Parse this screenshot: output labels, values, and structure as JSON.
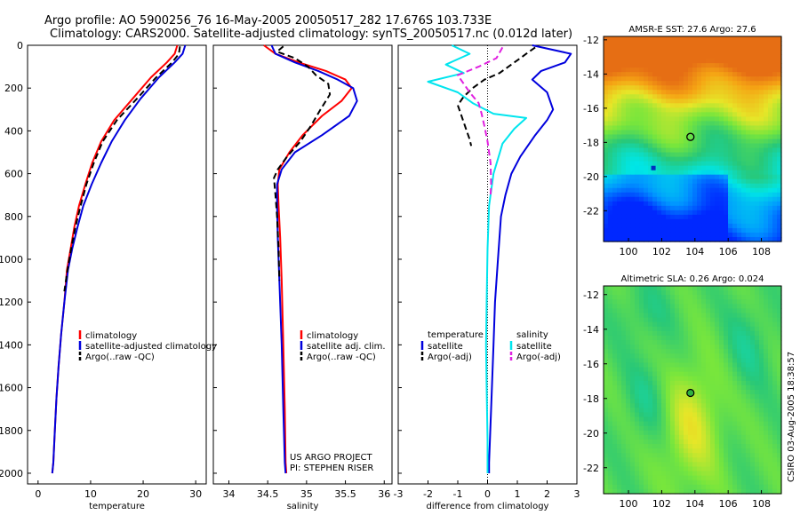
{
  "header": {
    "title_line1": "Argo profile: AO 5900256_76 16-May-2005 20050517_282 17.676S 103.733E",
    "title_line2": "Climatology: CARS2000. Satellite-adjusted climatology: synTS_20050517.nc (0.012d later)"
  },
  "footer": {
    "credit": "CSIRO 03-Aug-2005 18:38:57",
    "project_line1": "US ARGO PROJECT",
    "project_line2": "PI: STEPHEN RISER"
  },
  "colors": {
    "climatology": "#ff0000",
    "satellite": "#0000dd",
    "argo": "#000000",
    "satellite_salinity": "#00e5ee",
    "argo_salinity": "#e020e0"
  },
  "chart_data": [
    {
      "type": "line",
      "xlabel": "temperature",
      "xlim": [
        -2,
        32
      ],
      "ylim": [
        0,
        2050
      ],
      "y_reversed": true,
      "xticks": [
        0,
        10,
        20,
        30
      ],
      "yticks": [
        0,
        200,
        400,
        600,
        800,
        1000,
        1200,
        1400,
        1600,
        1800,
        2000
      ],
      "legend": [
        "climatology",
        "satellite-adjusted climatology",
        "Argo(..raw -QC)"
      ],
      "series": [
        {
          "name": "climatology",
          "color": "#ff0000",
          "dash": false,
          "x": [
            26.5,
            26.0,
            24.5,
            21.5,
            18.0,
            14.5,
            12.0,
            10.3,
            9.0,
            7.8,
            6.9,
            6.2,
            5.5,
            5.0,
            4.4,
            3.9,
            3.5,
            3.2,
            2.9,
            2.7
          ],
          "y": [
            0,
            40,
            80,
            150,
            250,
            350,
            450,
            550,
            650,
            750,
            850,
            950,
            1050,
            1200,
            1350,
            1500,
            1650,
            1800,
            1950,
            2000
          ]
        },
        {
          "name": "satellite-adjusted climatology",
          "color": "#0000dd",
          "dash": false,
          "x": [
            28.0,
            27.5,
            26.0,
            23.0,
            19.5,
            16.5,
            14.0,
            12.0,
            10.2,
            8.6,
            7.5,
            6.5,
            5.7,
            5.0,
            4.4,
            3.9,
            3.5,
            3.2,
            2.9,
            2.7
          ],
          "y": [
            0,
            40,
            80,
            150,
            250,
            350,
            450,
            550,
            650,
            750,
            850,
            950,
            1050,
            1200,
            1350,
            1500,
            1650,
            1800,
            1950,
            2000
          ]
        },
        {
          "name": "Argo(..raw -QC)",
          "color": "#000000",
          "dash": true,
          "x": [
            27.0,
            26.8,
            25.5,
            22.5,
            18.8,
            15.0,
            12.3,
            10.6,
            9.2,
            8.1,
            7.1,
            6.3,
            5.6,
            5.0
          ],
          "y": [
            5,
            40,
            80,
            150,
            250,
            350,
            450,
            550,
            650,
            750,
            850,
            950,
            1050,
            1150
          ]
        }
      ]
    },
    {
      "type": "line",
      "xlabel": "salinity",
      "xlim": [
        33.8,
        36.1
      ],
      "ylim": [
        0,
        2050
      ],
      "y_reversed": true,
      "xticks": [
        34,
        34.5,
        35,
        35.5,
        36
      ],
      "yticks": [
        0,
        200,
        400,
        600,
        800,
        1000,
        1200,
        1400,
        1600,
        1800,
        2000
      ],
      "legend": [
        "climatology",
        "satellite adj. clim.",
        "Argo(..raw -QC)"
      ],
      "series": [
        {
          "name": "climatology",
          "color": "#ff0000",
          "dash": false,
          "x": [
            34.45,
            34.6,
            34.9,
            35.25,
            35.5,
            35.58,
            35.45,
            35.2,
            34.95,
            34.78,
            34.65,
            34.63,
            34.64,
            34.66,
            34.68,
            34.7,
            34.72,
            34.73,
            34.74
          ],
          "y": [
            0,
            40,
            80,
            120,
            160,
            200,
            260,
            330,
            420,
            500,
            580,
            650,
            750,
            900,
            1100,
            1400,
            1700,
            1950,
            2000
          ]
        },
        {
          "name": "satellite adj. clim.",
          "color": "#0000dd",
          "dash": false,
          "x": [
            34.55,
            34.6,
            34.85,
            35.15,
            35.4,
            35.6,
            35.65,
            35.55,
            35.2,
            34.85,
            34.68,
            34.62,
            34.62,
            34.63,
            34.65,
            34.68,
            34.7,
            34.72,
            34.73
          ],
          "y": [
            0,
            40,
            80,
            120,
            160,
            200,
            260,
            330,
            420,
            500,
            580,
            650,
            750,
            900,
            1100,
            1400,
            1700,
            1950,
            2000
          ]
        },
        {
          "name": "Argo(..raw -QC)",
          "color": "#000000",
          "dash": true,
          "x": [
            34.7,
            34.62,
            34.85,
            35.02,
            35.12,
            35.28,
            35.3,
            35.18,
            35.05,
            34.92,
            34.75,
            34.63,
            34.58,
            34.6,
            34.62,
            34.64,
            34.65
          ],
          "y": [
            5,
            30,
            60,
            100,
            140,
            180,
            230,
            300,
            380,
            450,
            520,
            580,
            620,
            700,
            800,
            950,
            1100
          ]
        }
      ]
    },
    {
      "type": "line",
      "xlabel": "difference from climatology",
      "xlim": [
        -3,
        3
      ],
      "ylim": [
        0,
        2050
      ],
      "y_reversed": true,
      "xticks": [
        -3,
        -2,
        -1,
        0,
        1,
        2,
        3
      ],
      "yticks": [
        0,
        200,
        400,
        600,
        800,
        1000,
        1200,
        1400,
        1600,
        1800,
        2000
      ],
      "zero_line": true,
      "legend_left": [
        "temperature",
        "satellite",
        "Argo(-adj)"
      ],
      "legend_right": [
        "salinity",
        "satellite",
        "Argo(-adj)"
      ],
      "series": [
        {
          "name": "temperature satellite",
          "color": "#0000dd",
          "dash": false,
          "x": [
            1.5,
            2.8,
            2.6,
            1.8,
            1.5,
            2.0,
            2.2,
            2.0,
            1.6,
            1.1,
            0.8,
            0.6,
            0.45,
            0.35,
            0.25,
            0.2,
            0.12,
            0.05,
            0.05
          ],
          "y": [
            0,
            40,
            80,
            120,
            160,
            220,
            300,
            350,
            420,
            520,
            600,
            700,
            800,
            1000,
            1200,
            1400,
            1700,
            1950,
            2000
          ]
        },
        {
          "name": "temperature Argo",
          "color": "#000000",
          "dash": true,
          "x": [
            1.6,
            1.3,
            1.1,
            0.8,
            0.4,
            -0.1,
            -0.5,
            -0.8,
            -1.0,
            -0.9,
            -0.8,
            -0.7,
            -0.6,
            -0.55
          ],
          "y": [
            10,
            40,
            60,
            90,
            130,
            160,
            200,
            240,
            280,
            320,
            360,
            400,
            440,
            470
          ]
        },
        {
          "name": "salinity satellite",
          "color": "#00e5ee",
          "dash": false,
          "x": [
            -1.2,
            -0.6,
            -1.4,
            -0.8,
            -2.0,
            -1.0,
            -0.5,
            0.2,
            1.3,
            0.9,
            0.5,
            0.2,
            0.05,
            0.0,
            -0.03,
            -0.05,
            -0.03,
            0.0,
            0.0
          ],
          "y": [
            0,
            40,
            90,
            130,
            170,
            220,
            270,
            320,
            340,
            390,
            460,
            600,
            750,
            950,
            1200,
            1400,
            1600,
            1850,
            2000
          ]
        },
        {
          "name": "salinity Argo",
          "color": "#e020e0",
          "dash": true,
          "x": [
            0.5,
            0.3,
            -0.3,
            -1.0,
            -0.8,
            -0.6,
            -0.3,
            -0.2,
            -0.1,
            0.0,
            0.1,
            0.12,
            0.1
          ],
          "y": [
            10,
            60,
            100,
            140,
            180,
            220,
            270,
            320,
            380,
            450,
            550,
            650,
            700
          ]
        }
      ]
    },
    {
      "type": "heatmap",
      "title": "AMSR-E SST: 27.6 Argo: 27.6",
      "xlim": [
        98.5,
        109.2
      ],
      "ylim": [
        -23.8,
        -11.8
      ],
      "xticks": [
        100,
        102,
        104,
        106,
        108
      ],
      "yticks": [
        -12,
        -14,
        -16,
        -18,
        -20,
        -22
      ],
      "profile_location": [
        103.73,
        -17.68
      ],
      "extra_point": [
        101.5,
        -19.5
      ]
    },
    {
      "type": "heatmap",
      "title": "Altimetric SLA: 0.26 Argo: 0.024",
      "xlim": [
        98.5,
        109.2
      ],
      "ylim": [
        -23.5,
        -11.5
      ],
      "xticks": [
        100,
        102,
        104,
        106,
        108
      ],
      "yticks": [
        -12,
        -14,
        -16,
        -18,
        -20,
        -22
      ],
      "profile_location": [
        103.73,
        -17.68
      ]
    }
  ]
}
